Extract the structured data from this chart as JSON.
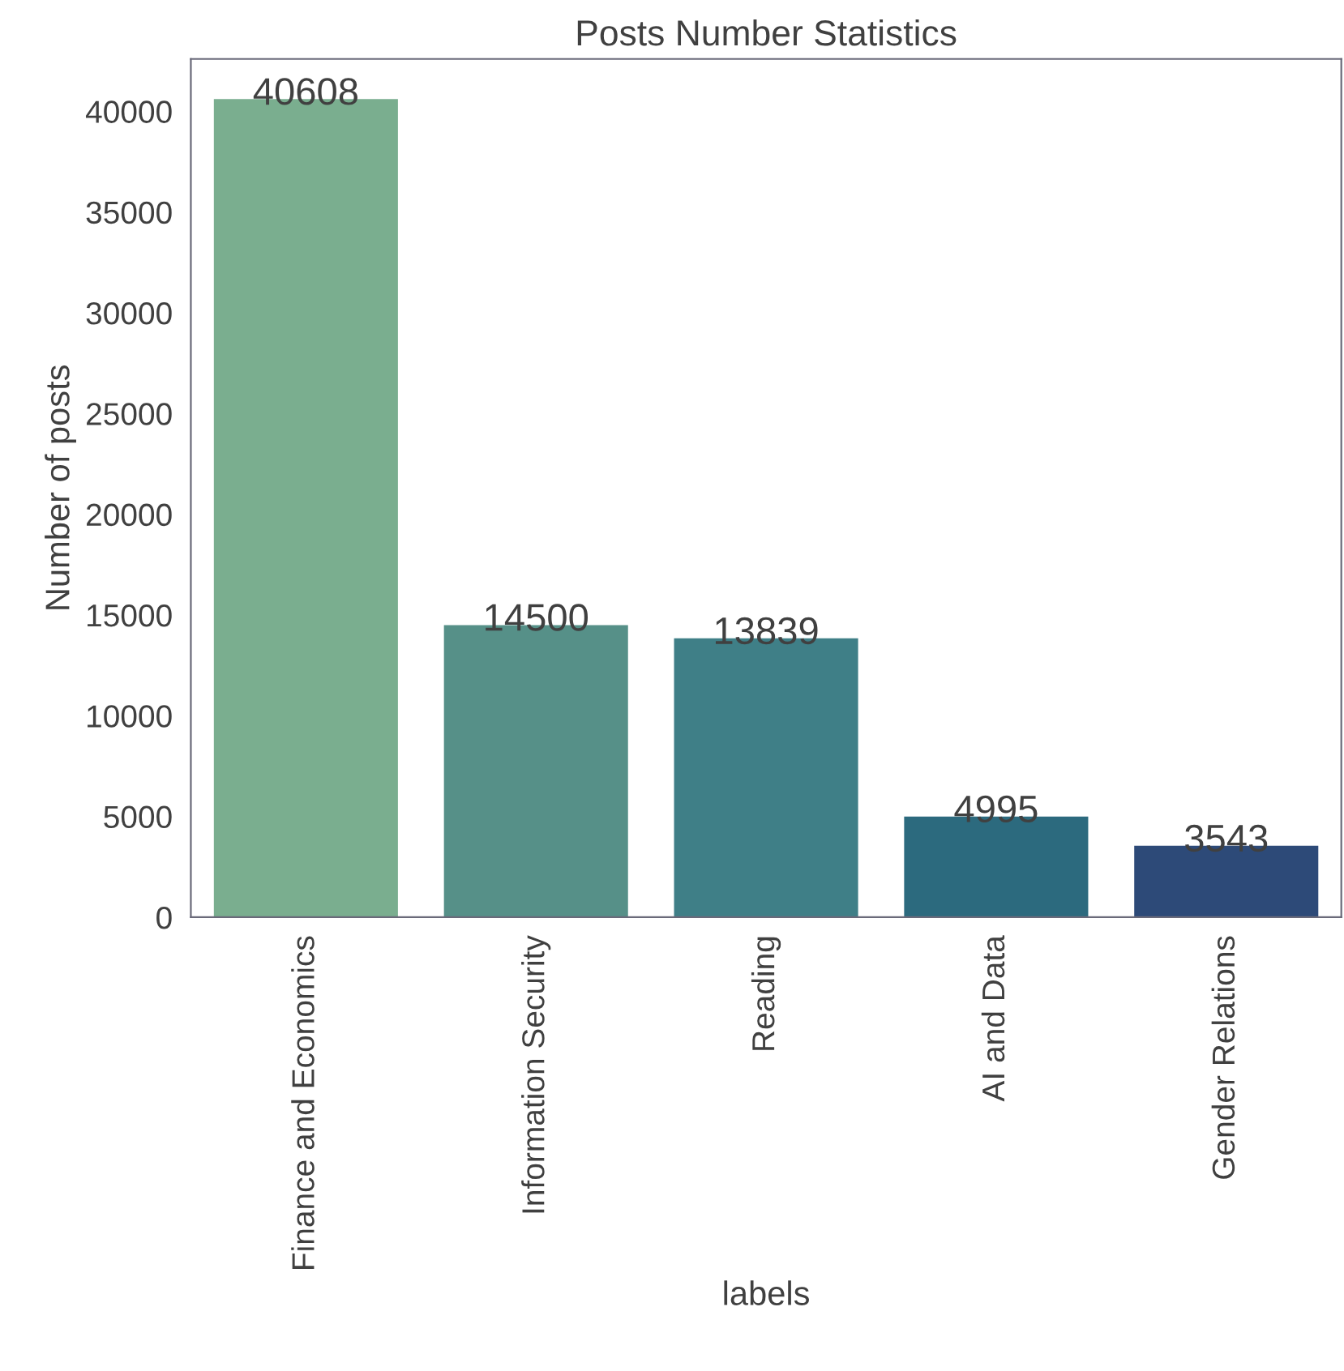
{
  "chart_data": {
    "type": "bar",
    "title": "Posts Number Statistics",
    "xlabel": "labels",
    "ylabel": "Number of posts",
    "categories": [
      "Finance and Economics",
      "Information Security",
      "Reading",
      "AI and Data",
      "Gender Relations"
    ],
    "values": [
      40608,
      14500,
      13839,
      4995,
      3543
    ],
    "colors": [
      "#7aae8f",
      "#569088",
      "#3f7f87",
      "#2c6a7e",
      "#2d4a78"
    ],
    "ylim": [
      0,
      42600
    ],
    "yticks": [
      0,
      5000,
      10000,
      15000,
      20000,
      25000,
      30000,
      35000,
      40000
    ],
    "data_labels": true,
    "grid": false,
    "legend": false
  }
}
